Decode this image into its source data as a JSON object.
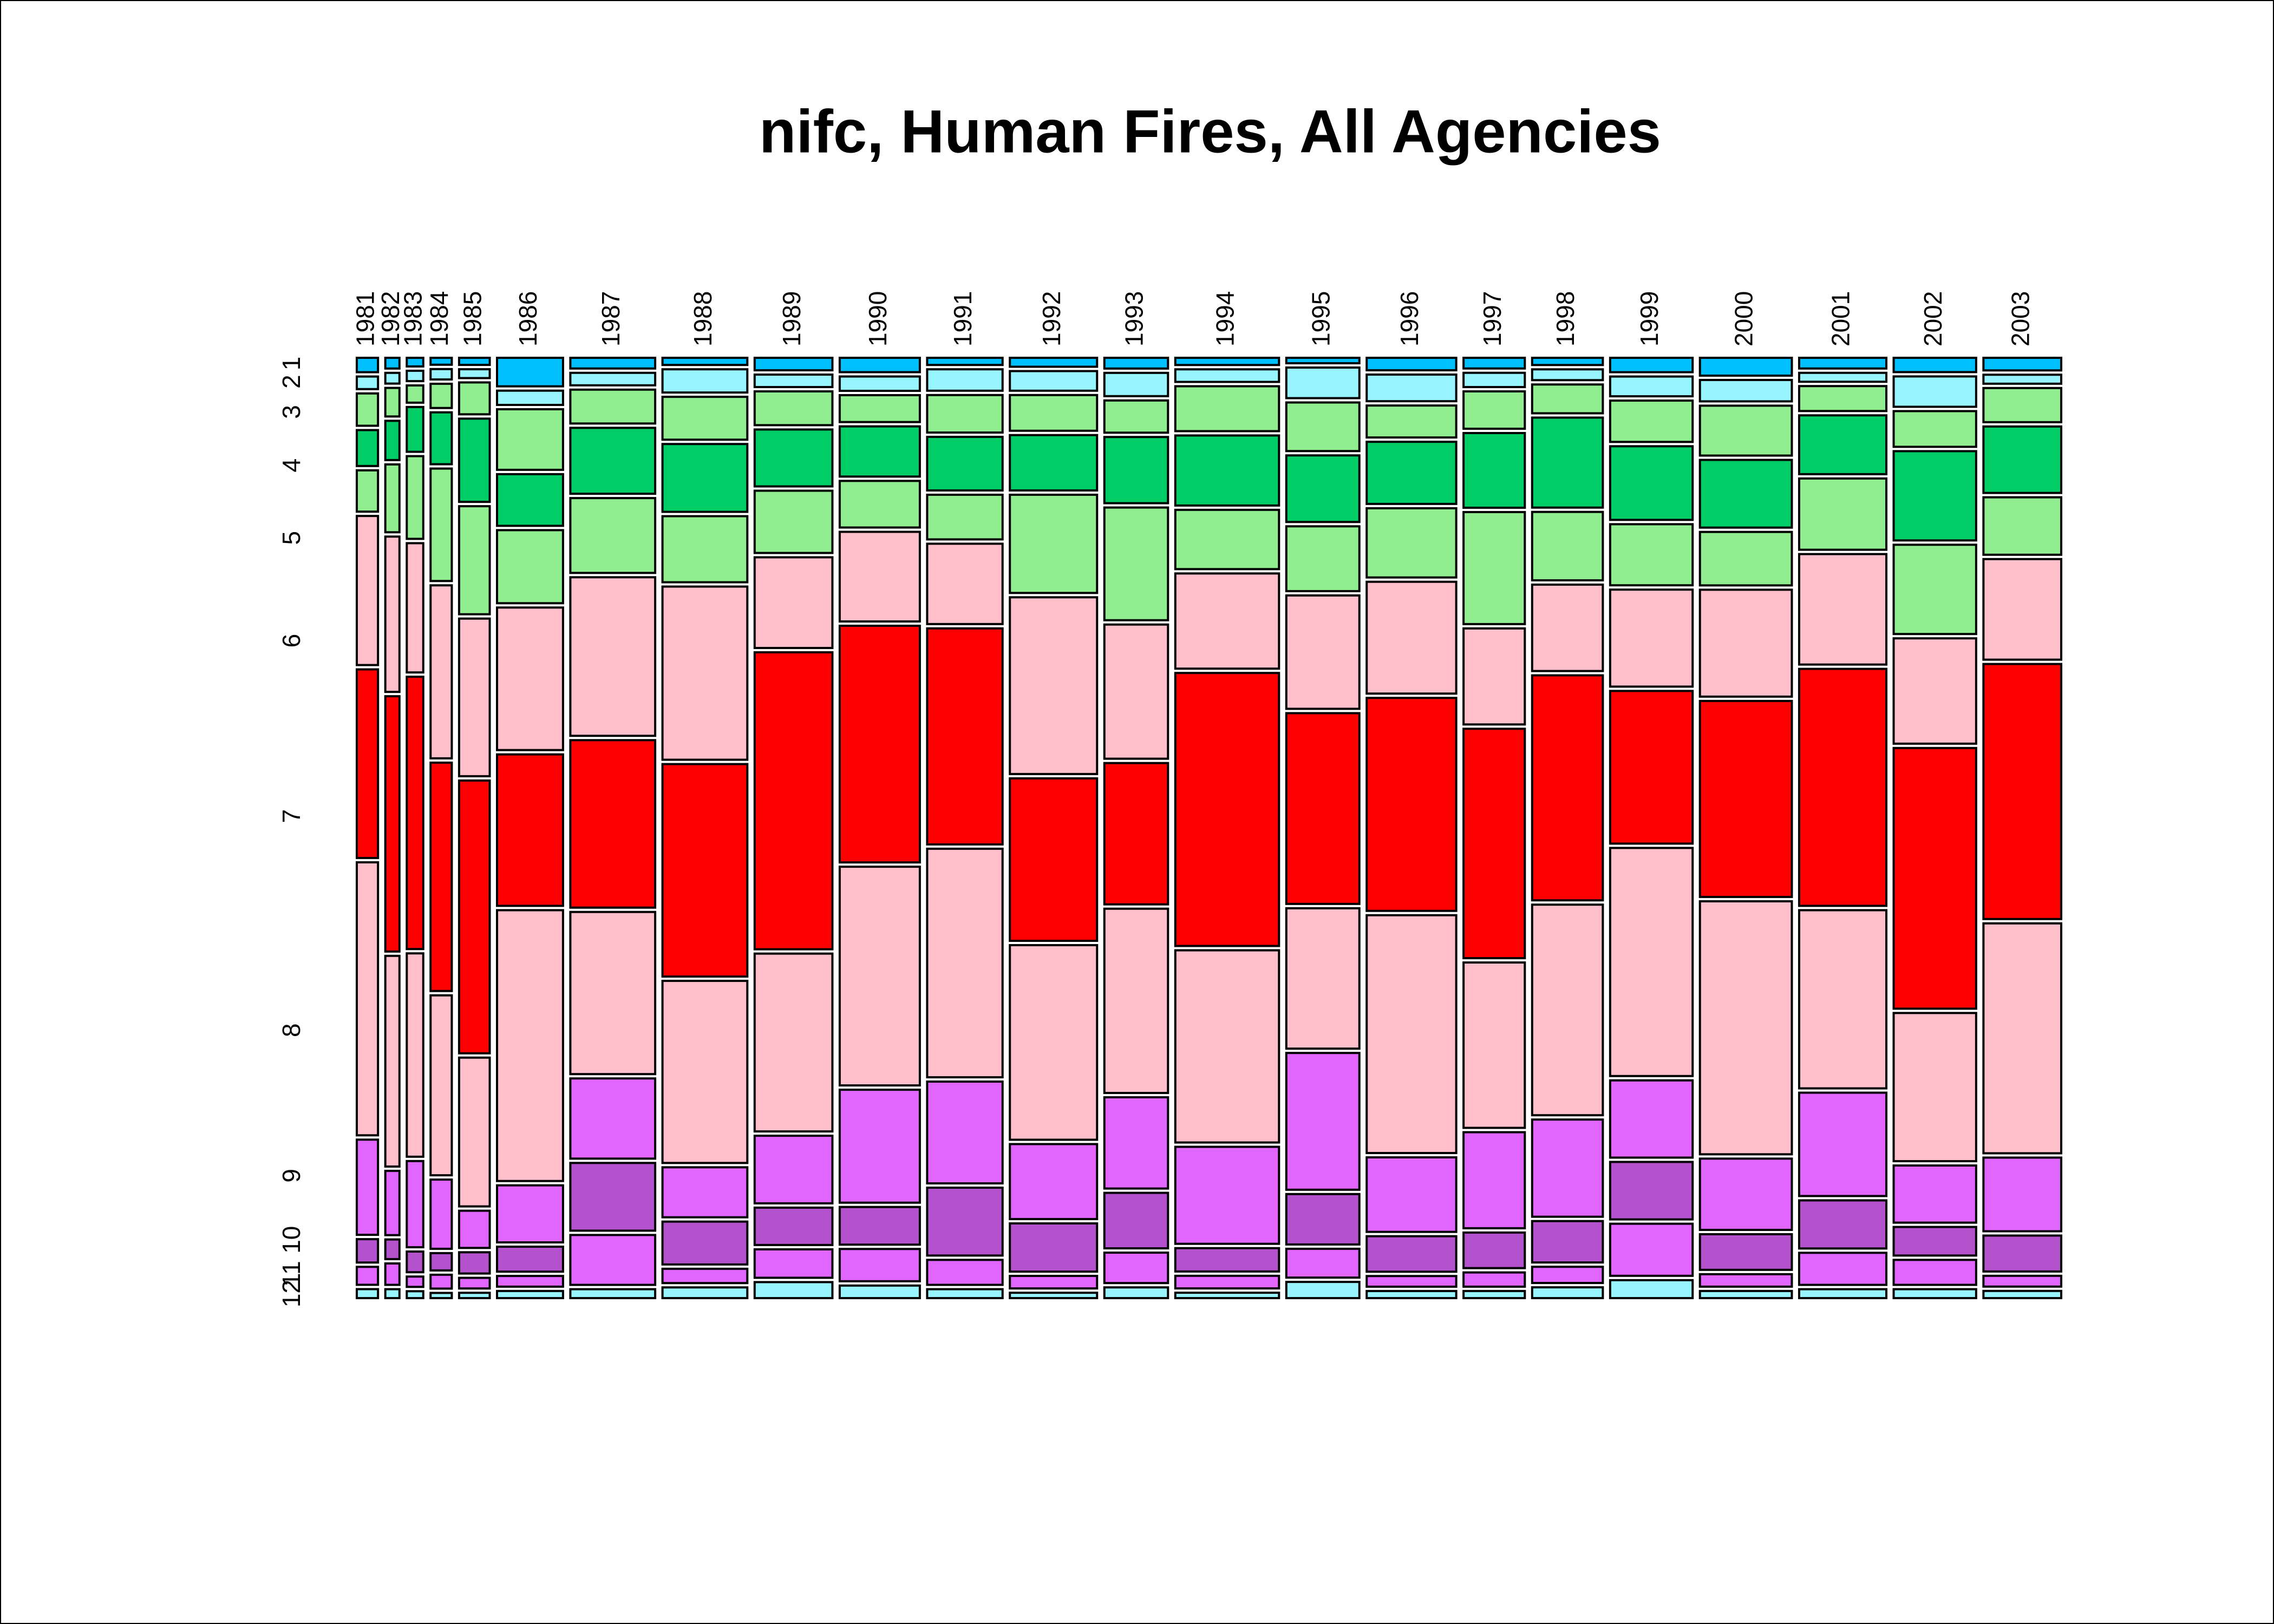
{
  "chart_data": {
    "type": "mosaic",
    "title": "nifc, Human Fires, All Agencies",
    "categories": [
      "1981",
      "1982",
      "1983",
      "1984",
      "1985",
      "1986",
      "1987",
      "1988",
      "1989",
      "1990",
      "1991",
      "1992",
      "1993",
      "1994",
      "1995",
      "1996",
      "1997",
      "1998",
      "1999",
      "2000",
      "2001",
      "2002",
      "2003"
    ],
    "column_totals": [
      9,
      6,
      7,
      9,
      13,
      28,
      36,
      36,
      33,
      34,
      32,
      37,
      27,
      44,
      31,
      38,
      26,
      30,
      35,
      39,
      37,
      35,
      33
    ],
    "series": [
      {
        "name": "1",
        "color": "#00BFFF",
        "values": [
          8,
          6,
          5,
          4,
          4,
          16,
          6,
          4,
          7,
          8,
          4,
          5,
          6,
          4,
          3,
          7,
          6,
          4,
          8,
          10,
          6,
          8,
          7
        ]
      },
      {
        "name": "2",
        "color": "#98F5FF",
        "values": [
          7,
          6,
          6,
          6,
          5,
          8,
          7,
          13,
          7,
          8,
          12,
          11,
          13,
          7,
          17,
          15,
          8,
          6,
          11,
          12,
          5,
          17,
          5
        ]
      },
      {
        "name": "3",
        "color": "#90EE90",
        "values": [
          18,
          16,
          10,
          14,
          18,
          34,
          19,
          24,
          19,
          15,
          21,
          20,
          18,
          25,
          27,
          18,
          21,
          16,
          23,
          28,
          14,
          20,
          19
        ]
      },
      {
        "name": "4",
        "color": "#00CD66",
        "values": [
          20,
          22,
          26,
          30,
          47,
          29,
          37,
          38,
          32,
          28,
          30,
          31,
          37,
          39,
          37,
          35,
          42,
          50,
          41,
          38,
          33,
          50,
          37
        ]
      },
      {
        "name": "5",
        "color": "#90EE90",
        "values": [
          23,
          38,
          48,
          65,
          61,
          41,
          42,
          37,
          35,
          26,
          25,
          55,
          63,
          33,
          36,
          39,
          63,
          38,
          34,
          30,
          40,
          50,
          32
        ]
      },
      {
        "name": "6",
        "color": "#FFC0CB",
        "values": [
          83,
          87,
          75,
          100,
          89,
          80,
          89,
          97,
          51,
          50,
          45,
          99,
          75,
          53,
          63,
          63,
          54,
          48,
          54,
          60,
          62,
          59,
          56
        ]
      },
      {
        "name": "7",
        "color": "#FF0000",
        "values": [
          105,
          143,
          158,
          132,
          154,
          85,
          94,
          119,
          167,
          132,
          121,
          91,
          79,
          152,
          106,
          120,
          129,
          125,
          85,
          110,
          133,
          146,
          142
        ]
      },
      {
        "name": "8",
        "color": "#FFC0CB",
        "values": [
          152,
          118,
          118,
          104,
          84,
          152,
          91,
          102,
          100,
          122,
          128,
          109,
          103,
          107,
          78,
          134,
          93,
          117,
          127,
          142,
          100,
          83,
          128
        ]
      },
      {
        "name": "9",
        "color": "#E066FF",
        "values": [
          53,
          36,
          50,
          40,
          21,
          32,
          45,
          28,
          38,
          63,
          57,
          42,
          51,
          54,
          76,
          42,
          54,
          54,
          43,
          40,
          58,
          32,
          41
        ]
      },
      {
        "name": "10",
        "color": "#B452CD",
        "values": [
          13,
          11,
          12,
          10,
          12,
          14,
          38,
          24,
          21,
          21,
          38,
          27,
          31,
          13,
          28,
          20,
          20,
          23,
          32,
          20,
          27,
          16,
          20
        ]
      },
      {
        "name": "11",
        "color": "#E066FF",
        "values": [
          10,
          12,
          6,
          8,
          6,
          6,
          28,
          8,
          16,
          18,
          14,
          7,
          17,
          7,
          16,
          6,
          8,
          9,
          29,
          7,
          18,
          14,
          6
        ]
      },
      {
        "name": "12",
        "color": "#98F5FF",
        "values": [
          5,
          5,
          4,
          3,
          3,
          4,
          5,
          6,
          9,
          7,
          5,
          3,
          6,
          3,
          9,
          4,
          4,
          6,
          10,
          4,
          5,
          5,
          4
        ]
      }
    ]
  }
}
